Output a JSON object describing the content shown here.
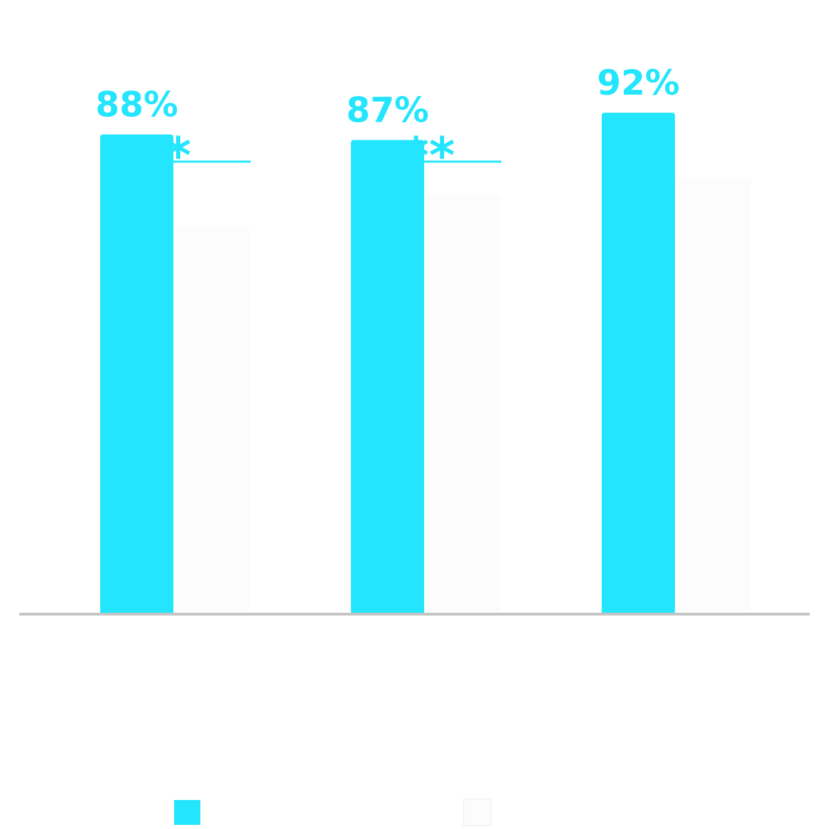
{
  "colors": {
    "primary_bar": "#23e5fd",
    "secondary_bar": "#fcfcfc",
    "secondary_label": "#f3f3f3",
    "axis": "#c4c4c4",
    "significance": "#23e5fd",
    "group_label": "#f3f3f3"
  },
  "chart_data": {
    "type": "bar",
    "title": "",
    "categories": [
      {
        "name": "",
        "caption": ""
      },
      {
        "name": "",
        "caption": ""
      },
      {
        "name": "",
        "caption": ""
      }
    ],
    "series": [
      {
        "name": "",
        "values": [
          88,
          87,
          92
        ],
        "labels": [
          "88%",
          "87%",
          "92%"
        ],
        "color_key": "primary_bar"
      },
      {
        "name": "",
        "values": [
          71,
          77,
          80
        ],
        "labels": [
          "",
          "",
          ""
        ],
        "color_key": "secondary_bar"
      }
    ],
    "significance": [
      {
        "category_index": 0,
        "marker": "*"
      },
      {
        "category_index": 1,
        "marker": "**"
      }
    ],
    "ylim": [
      0,
      100
    ],
    "xlabel": "",
    "ylabel": "",
    "grid": false,
    "legend_position": "bottom"
  }
}
